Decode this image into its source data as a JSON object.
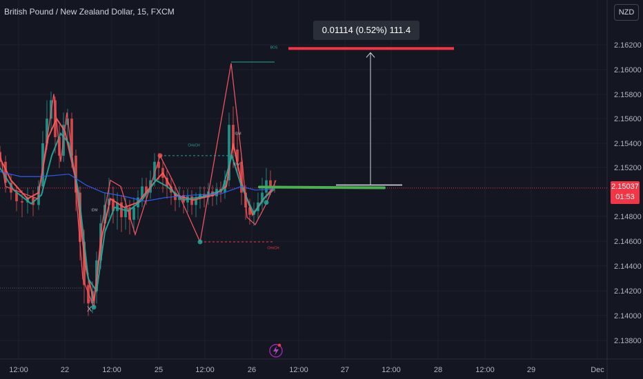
{
  "header": {
    "title": "British Pound / New Zealand Dollar, 15, FXCM",
    "currency_button": "NZD"
  },
  "measure_tooltip": "0.01114 (0.52%) 111.4",
  "price_label": {
    "price": "2.15037",
    "countdown": "01:53"
  },
  "colors": {
    "background": "#141722",
    "candle_up": "#26a69a",
    "candle_down": "#ef5350",
    "zigzag": "#f0525f",
    "ma_red": "#ff5a5a",
    "ma_green": "#26a69a",
    "ma_blue": "#2962ff",
    "target_line": "#f23645",
    "entry_line": "#4caf50"
  },
  "annotations": {
    "bos": "BOS",
    "choch": "CHoCH",
    "idm": "IDM",
    "x": "X"
  },
  "chart_data": {
    "type": "candlestick",
    "y_ticks": [
      "2.16200",
      "2.16000",
      "2.15800",
      "2.15600",
      "2.15400",
      "2.15200",
      "2.14800",
      "2.14600",
      "2.14400",
      "2.14200",
      "2.14000",
      "2.13800"
    ],
    "x_ticks": [
      "12:00",
      "22",
      "12:00",
      "25",
      "12:00",
      "26",
      "12:00",
      "27",
      "12:00",
      "28",
      "12:00",
      "29",
      "Dec"
    ],
    "ylim": [
      2.1375,
      2.164
    ],
    "last_price": 2.15037,
    "target_price": 2.1617,
    "entry_price": 2.15056,
    "zigzag": [
      [
        0,
        2.1533
      ],
      [
        8,
        2.1505
      ],
      [
        40,
        2.1498
      ],
      [
        55,
        2.1495
      ],
      [
        78,
        2.158
      ],
      [
        88,
        2.1525
      ],
      [
        97,
        2.1565
      ],
      [
        108,
        2.1515
      ],
      [
        120,
        2.143
      ],
      [
        136,
        2.1407
      ],
      [
        148,
        2.1475
      ],
      [
        160,
        2.151
      ],
      [
        175,
        2.1505
      ],
      [
        196,
        2.1466
      ],
      [
        232,
        2.153
      ],
      [
        250,
        2.151
      ],
      [
        290,
        2.146
      ],
      [
        335,
        2.1605
      ],
      [
        352,
        2.152
      ],
      [
        358,
        2.148
      ],
      [
        370,
        2.1474
      ],
      [
        385,
        2.149
      ],
      [
        400,
        2.151
      ]
    ],
    "swing_points": [
      [
        136,
        2.1407
      ],
      [
        232,
        2.153
      ],
      [
        290,
        2.146
      ],
      [
        386,
        2.1492
      ]
    ],
    "lines": [
      {
        "label": "BOS",
        "from": [
          335,
          2.1606
        ],
        "to": [
          398,
          2.1606
        ],
        "color": "#26a69a"
      },
      {
        "label": "CHoCH",
        "from": [
          232,
          2.153
        ],
        "to": [
          345,
          2.153
        ],
        "color": "#26a69a"
      },
      {
        "label": "CHoCH",
        "from": [
          290,
          2.146
        ],
        "to": [
          398,
          2.146
        ],
        "color": "#f23645"
      }
    ],
    "candles": [
      [
        0,
        2.1533,
        2.1525,
        2.1538,
        2.152
      ],
      [
        8,
        2.1525,
        2.1508,
        2.153,
        2.15
      ],
      [
        16,
        2.1508,
        2.15,
        2.1515,
        2.1494
      ],
      [
        24,
        2.15,
        2.1493,
        2.1506,
        2.1485
      ],
      [
        32,
        2.1493,
        2.1492,
        2.1502,
        2.148
      ],
      [
        40,
        2.1492,
        2.1496,
        2.1504,
        2.1483
      ],
      [
        48,
        2.1496,
        2.149,
        2.1502,
        2.1481
      ],
      [
        56,
        2.149,
        2.1505,
        2.151,
        2.1486
      ],
      [
        62,
        2.1505,
        2.154,
        2.155,
        2.15
      ],
      [
        68,
        2.154,
        2.156,
        2.1575,
        2.1535
      ],
      [
        74,
        2.156,
        2.1575,
        2.1582,
        2.155
      ],
      [
        80,
        2.1575,
        2.1545,
        2.1578,
        2.1532
      ],
      [
        86,
        2.1545,
        2.153,
        2.1555,
        2.152
      ],
      [
        92,
        2.153,
        2.1555,
        2.1565,
        2.1525
      ],
      [
        98,
        2.1555,
        2.156,
        2.1568,
        2.154
      ],
      [
        104,
        2.156,
        2.153,
        2.1565,
        2.152
      ],
      [
        110,
        2.153,
        2.15,
        2.1535,
        2.1485
      ],
      [
        116,
        2.15,
        2.146,
        2.1505,
        2.1445
      ],
      [
        122,
        2.146,
        2.1425,
        2.147,
        2.141
      ],
      [
        128,
        2.1425,
        2.141,
        2.1435,
        2.14
      ],
      [
        134,
        2.141,
        2.142,
        2.1428,
        2.1402
      ],
      [
        140,
        2.142,
        2.1445,
        2.1452,
        2.141
      ],
      [
        146,
        2.1445,
        2.1475,
        2.1482,
        2.1438
      ],
      [
        152,
        2.1475,
        2.149,
        2.15,
        2.1468
      ],
      [
        158,
        2.149,
        2.1495,
        2.1512,
        2.148
      ],
      [
        164,
        2.1495,
        2.1485,
        2.1505,
        2.1475
      ],
      [
        170,
        2.1485,
        2.1492,
        2.15,
        2.147
      ],
      [
        176,
        2.1492,
        2.148,
        2.1498,
        2.1468
      ],
      [
        182,
        2.148,
        2.1488,
        2.1496,
        2.147
      ],
      [
        188,
        2.1488,
        2.1478,
        2.1494,
        2.1466
      ],
      [
        194,
        2.1478,
        2.1488,
        2.1496,
        2.1468
      ],
      [
        200,
        2.1488,
        2.1496,
        2.1502,
        2.1478
      ],
      [
        206,
        2.1496,
        2.1505,
        2.1512,
        2.1488
      ],
      [
        212,
        2.1505,
        2.15,
        2.1512,
        2.149
      ],
      [
        218,
        2.15,
        2.151,
        2.1518,
        2.1495
      ],
      [
        224,
        2.151,
        2.1525,
        2.1532,
        2.1505
      ],
      [
        230,
        2.1525,
        2.152,
        2.1532,
        2.151
      ],
      [
        236,
        2.152,
        2.1512,
        2.1526,
        2.15
      ],
      [
        242,
        2.1512,
        2.1505,
        2.1518,
        2.1495
      ],
      [
        248,
        2.1505,
        2.15,
        2.1512,
        2.149
      ],
      [
        254,
        2.15,
        2.1494,
        2.1506,
        2.1485
      ],
      [
        260,
        2.1494,
        2.1498,
        2.1505,
        2.1488
      ],
      [
        266,
        2.1498,
        2.1492,
        2.1502,
        2.1483
      ],
      [
        272,
        2.1492,
        2.1497,
        2.1503,
        2.1484
      ],
      [
        278,
        2.1497,
        2.149,
        2.1502,
        2.1482
      ],
      [
        284,
        2.149,
        2.1495,
        2.15,
        2.148
      ],
      [
        290,
        2.1495,
        2.1499,
        2.1505,
        2.1487
      ],
      [
        296,
        2.1499,
        2.1496,
        2.1505,
        2.1488
      ],
      [
        302,
        2.1496,
        2.1501,
        2.1508,
        2.149
      ],
      [
        308,
        2.1501,
        2.1497,
        2.1506,
        2.1489
      ],
      [
        314,
        2.1497,
        2.1503,
        2.1508,
        2.149
      ],
      [
        320,
        2.1503,
        2.15,
        2.1509,
        2.1492
      ],
      [
        326,
        2.15,
        2.151,
        2.1518,
        2.1495
      ],
      [
        332,
        2.151,
        2.1555,
        2.1565,
        2.1505
      ],
      [
        338,
        2.1555,
        2.1535,
        2.157,
        2.152
      ],
      [
        344,
        2.1535,
        2.1525,
        2.1548,
        2.1515
      ],
      [
        350,
        2.1525,
        2.15,
        2.153,
        2.149
      ],
      [
        356,
        2.15,
        2.1488,
        2.1506,
        2.1478
      ],
      [
        362,
        2.1488,
        2.1482,
        2.1495,
        2.1474
      ],
      [
        368,
        2.1482,
        2.1485,
        2.1492,
        2.1473
      ],
      [
        374,
        2.1485,
        2.1492,
        2.15,
        2.1478
      ],
      [
        380,
        2.1492,
        2.15,
        2.1512,
        2.1486
      ],
      [
        386,
        2.15,
        2.151,
        2.152,
        2.1495
      ],
      [
        392,
        2.151,
        2.1505,
        2.1518,
        2.1498
      ],
      [
        398,
        2.1505,
        2.1504,
        2.151,
        2.15
      ]
    ],
    "moving_averages": [
      {
        "name": "red",
        "color": "#ff5a5a",
        "points": [
          [
            0,
            2.1528
          ],
          [
            16,
            2.151
          ],
          [
            40,
            2.1495
          ],
          [
            56,
            2.15
          ],
          [
            70,
            2.1545
          ],
          [
            82,
            2.156
          ],
          [
            94,
            2.155
          ],
          [
            110,
            2.151
          ],
          [
            124,
            2.144
          ],
          [
            136,
            2.1412
          ],
          [
            148,
            2.1465
          ],
          [
            160,
            2.1495
          ],
          [
            180,
            2.1488
          ],
          [
            200,
            2.1492
          ],
          [
            220,
            2.1506
          ],
          [
            236,
            2.1516
          ],
          [
            254,
            2.1498
          ],
          [
            280,
            2.1494
          ],
          [
            310,
            2.1498
          ],
          [
            328,
            2.1505
          ],
          [
            338,
            2.154
          ],
          [
            350,
            2.1508
          ],
          [
            366,
            2.1482
          ],
          [
            382,
            2.1495
          ],
          [
            398,
            2.1505
          ]
        ]
      },
      {
        "name": "green",
        "color": "#26a69a",
        "points": [
          [
            0,
            2.152
          ],
          [
            20,
            2.1502
          ],
          [
            45,
            2.1491
          ],
          [
            60,
            2.1498
          ],
          [
            75,
            2.153
          ],
          [
            88,
            2.1548
          ],
          [
            100,
            2.154
          ],
          [
            114,
            2.15
          ],
          [
            128,
            2.143
          ],
          [
            140,
            2.142
          ],
          [
            152,
            2.1468
          ],
          [
            166,
            2.1488
          ],
          [
            186,
            2.1485
          ],
          [
            206,
            2.1494
          ],
          [
            226,
            2.151
          ],
          [
            242,
            2.1505
          ],
          [
            266,
            2.1494
          ],
          [
            296,
            2.1497
          ],
          [
            322,
            2.1502
          ],
          [
            336,
            2.153
          ],
          [
            350,
            2.1505
          ],
          [
            368,
            2.1483
          ],
          [
            384,
            2.1496
          ],
          [
            398,
            2.1503
          ]
        ]
      },
      {
        "name": "blue",
        "color": "#2962ff",
        "points": [
          [
            0,
            2.1517
          ],
          [
            30,
            2.1513
          ],
          [
            60,
            2.1513
          ],
          [
            100,
            2.1515
          ],
          [
            125,
            2.1506
          ],
          [
            150,
            2.15
          ],
          [
            180,
            2.1497
          ],
          [
            210,
            2.1493
          ],
          [
            240,
            2.1496
          ],
          [
            280,
            2.1498
          ],
          [
            320,
            2.1499
          ],
          [
            350,
            2.1505
          ],
          [
            370,
            2.1502
          ],
          [
            398,
            2.1503
          ]
        ]
      }
    ]
  }
}
